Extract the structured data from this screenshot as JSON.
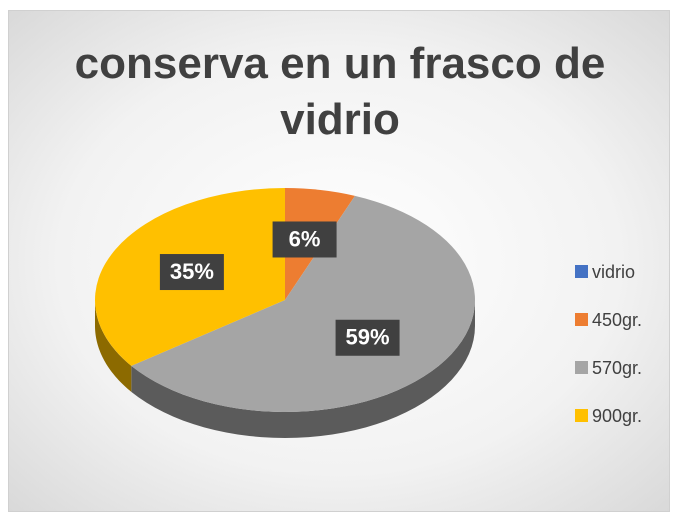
{
  "chart_data": {
    "type": "pie",
    "title": "conserva en un frasco de vidrio",
    "categories": [
      "vidrio",
      "450gr.",
      "570gr.",
      "900gr."
    ],
    "values": [
      0,
      6,
      59,
      35
    ],
    "value_labels": [
      null,
      "6%",
      "59%",
      "35%"
    ],
    "colors": [
      "#4472c4",
      "#ed7d31",
      "#a5a5a5",
      "#ffc000"
    ],
    "legend": "right"
  }
}
